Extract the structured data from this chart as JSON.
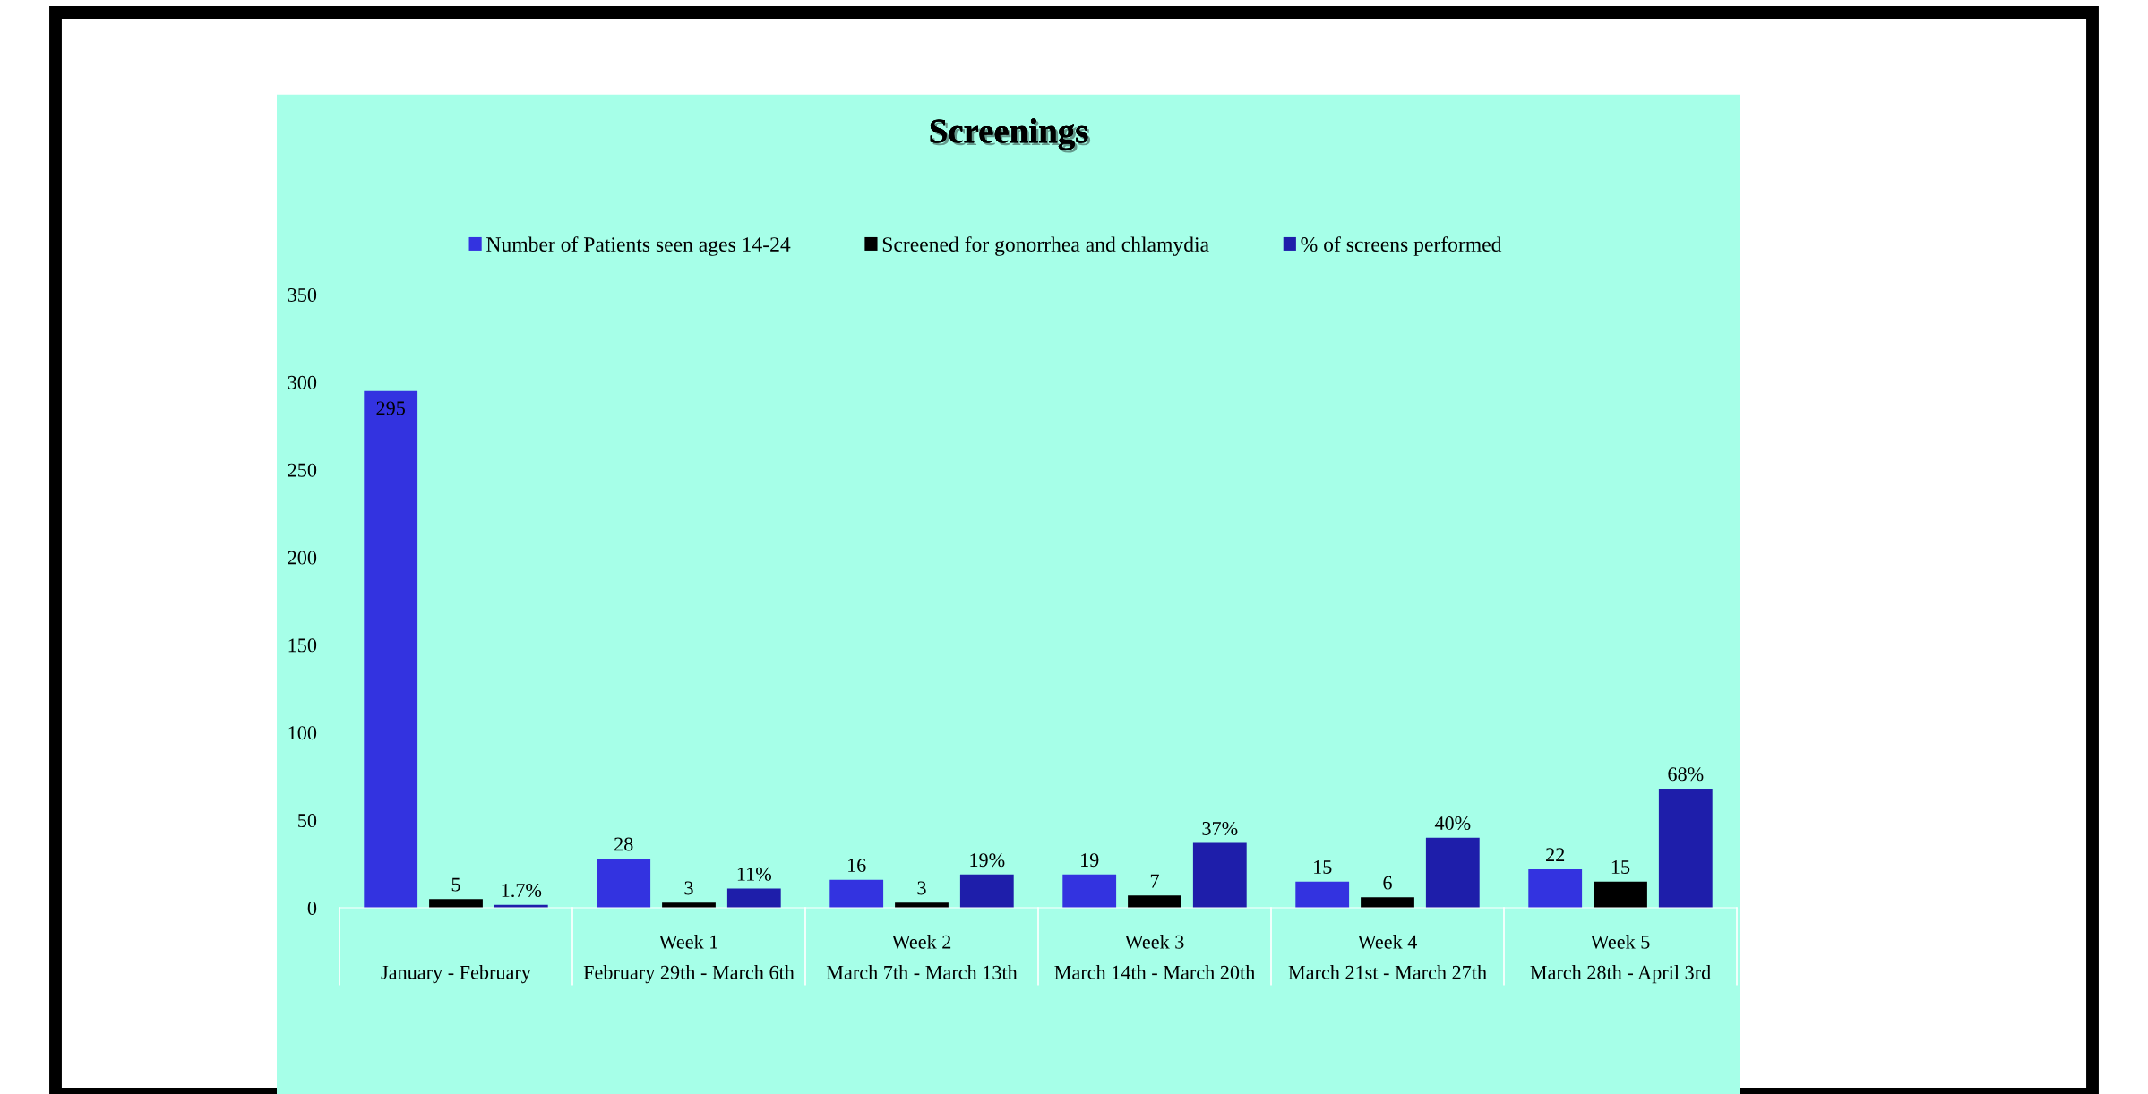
{
  "chart_data": {
    "type": "bar",
    "title": "Screenings",
    "categories": [
      "January - February",
      "Week 1\nFebruary 29th - March 6th",
      "Week 2\nMarch 7th - March 13th",
      "Week 3\nMarch 14th - March 20th",
      "Week 4\nMarch 21st - March 27th",
      "Week 5\nMarch 28th - April 3rd"
    ],
    "series": [
      {
        "name": "Number of Patients seen ages 14-24",
        "color": "#3333e0",
        "values": [
          295,
          28,
          16,
          19,
          15,
          22
        ],
        "value_labels": [
          "295",
          "28",
          "16",
          "19",
          "15",
          "22"
        ]
      },
      {
        "name": "Screened for gonorrhea and chlamydia",
        "color": "#000000",
        "values": [
          5,
          3,
          3,
          7,
          6,
          15
        ],
        "value_labels": [
          "5",
          "3",
          "3",
          "7",
          "6",
          "15"
        ]
      },
      {
        "name": "% of screens performed",
        "color": "#1e1eaa",
        "values": [
          1.7,
          11,
          19,
          37,
          40,
          68
        ],
        "value_labels": [
          "1.7%",
          "11%",
          "19%",
          "37%",
          "40%",
          "68%"
        ]
      }
    ],
    "ylim": [
      0,
      350
    ],
    "yticks": [
      0,
      50,
      100,
      150,
      200,
      250,
      300,
      350
    ],
    "grid": false,
    "legend": "top"
  }
}
